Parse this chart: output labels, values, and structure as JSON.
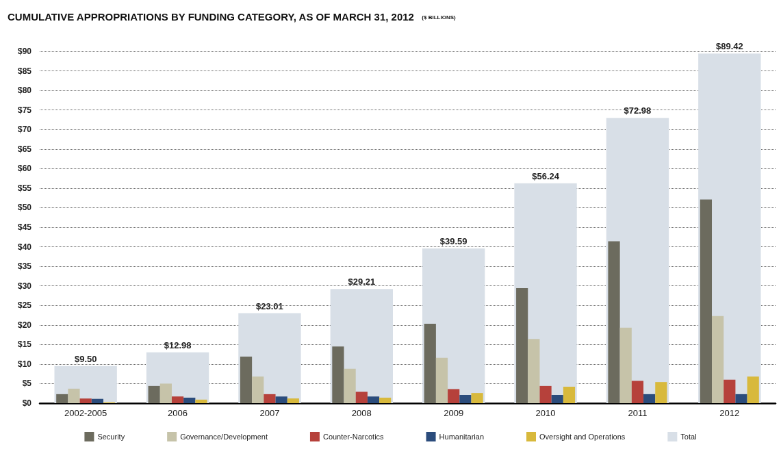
{
  "chart_data": {
    "type": "bar",
    "title": "CUMULATIVE APPROPRIATIONS BY FUNDING CATEGORY, AS OF MARCH 31, 2012",
    "subtitle": "($ BILLIONS)",
    "categories": [
      "2002-2005",
      "2006",
      "2007",
      "2008",
      "2009",
      "2010",
      "2011",
      "2012"
    ],
    "series": [
      {
        "name": "Security",
        "color": "#6c6b5e",
        "values": [
          2.3,
          4.4,
          11.9,
          14.5,
          20.3,
          29.4,
          41.4,
          52.1
        ]
      },
      {
        "name": "Governance/Development",
        "color": "#c6c3a9",
        "values": [
          3.7,
          5.0,
          6.8,
          8.8,
          11.6,
          16.4,
          19.3,
          22.3
        ]
      },
      {
        "name": "Counter-Narcotics",
        "color": "#b6413b",
        "values": [
          1.2,
          1.7,
          2.3,
          2.9,
          3.6,
          4.4,
          5.7,
          6.0
        ]
      },
      {
        "name": "Humanitarian",
        "color": "#2b4c7c",
        "values": [
          1.1,
          1.4,
          1.7,
          1.7,
          2.1,
          2.1,
          2.3,
          2.3
        ]
      },
      {
        "name": "Oversight and Operations",
        "color": "#d8b93c",
        "values": [
          0.2,
          0.9,
          1.2,
          1.4,
          2.6,
          4.2,
          5.4,
          6.8
        ]
      },
      {
        "name": "Total",
        "color": "#d8dfe7",
        "values": [
          9.5,
          12.98,
          23.01,
          29.21,
          39.59,
          56.24,
          72.98,
          89.42
        ],
        "value_labels": [
          "$9.50",
          "$12.98",
          "$23.01",
          "$29.21",
          "$39.59",
          "$56.24",
          "$72.98",
          "$89.42"
        ]
      }
    ],
    "ylim": [
      0,
      90
    ],
    "yticks": [
      {
        "value": 0,
        "label": "$0"
      },
      {
        "value": 5,
        "label": "$5"
      },
      {
        "value": 10,
        "label": "$10"
      },
      {
        "value": 15,
        "label": "$15"
      },
      {
        "value": 20,
        "label": "$20"
      },
      {
        "value": 25,
        "label": "$25"
      },
      {
        "value": 30,
        "label": "$30"
      },
      {
        "value": 35,
        "label": "$35"
      },
      {
        "value": 40,
        "label": "$40"
      },
      {
        "value": 45,
        "label": "$45"
      },
      {
        "value": 50,
        "label": "$50"
      },
      {
        "value": 55,
        "label": "$55"
      },
      {
        "value": 60,
        "label": "$60"
      },
      {
        "value": 65,
        "label": "$65"
      },
      {
        "value": 70,
        "label": "$70"
      },
      {
        "value": 75,
        "label": "$75"
      },
      {
        "value": 80,
        "label": "$80"
      },
      {
        "value": 85,
        "label": "$85"
      },
      {
        "value": 90,
        "label": "$90"
      }
    ],
    "grid": "y",
    "legend": "bottom"
  }
}
